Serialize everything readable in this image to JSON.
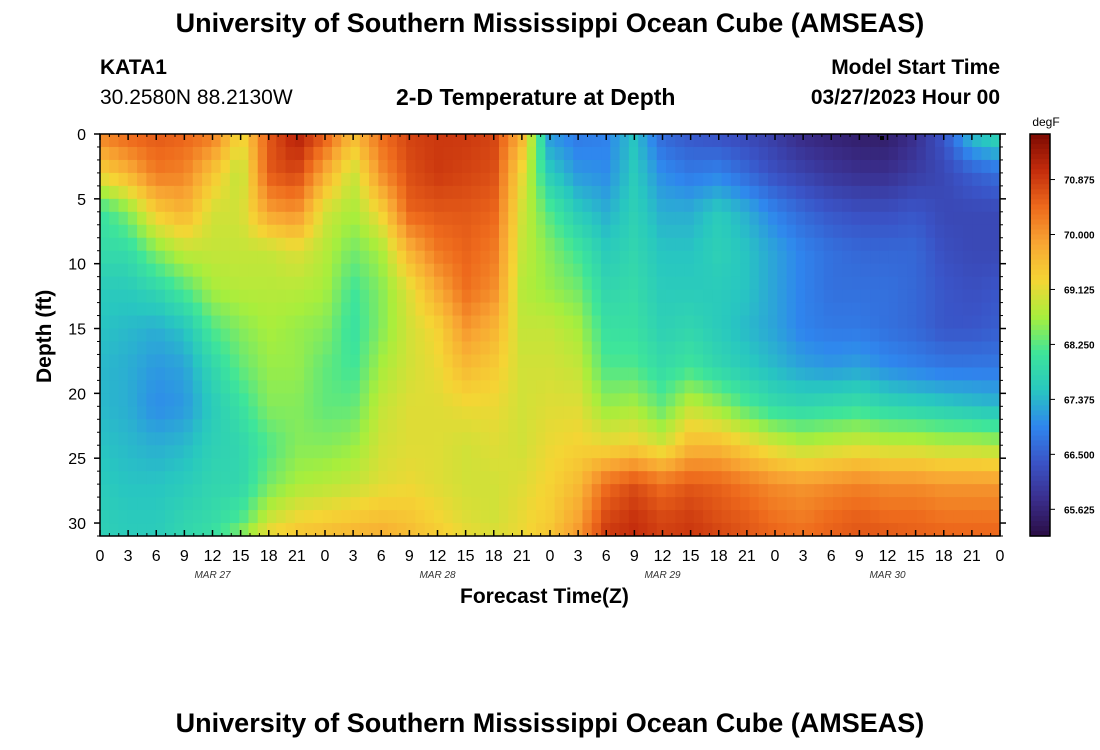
{
  "header": {
    "title": "University of Southern Mississippi Ocean Cube (AMSEAS)",
    "station": "KATA1",
    "coords": "30.2580N  88.2130W",
    "plot_title": "2-D Temperature at Depth",
    "model_label": "Model Start Time",
    "model_time": "03/27/2023 Hour 00"
  },
  "footer": {
    "title": "University of Southern Mississippi Ocean Cube (AMSEAS)"
  },
  "chart_data": {
    "type": "heatmap",
    "title": "2-D Temperature at Depth",
    "xlabel": "Forecast Time(Z)",
    "ylabel": "Depth (ft)",
    "x_range_hours": [
      0,
      96
    ],
    "y_range_ft": [
      0,
      31
    ],
    "x_tick_labels": [
      "0",
      "3",
      "6",
      "9",
      "12",
      "15",
      "18",
      "21",
      "0",
      "3",
      "6",
      "9",
      "12",
      "15",
      "18",
      "21",
      "0",
      "3",
      "6",
      "9",
      "12",
      "15",
      "18",
      "21",
      "0",
      "3",
      "6",
      "9",
      "12",
      "15",
      "18",
      "21",
      "0"
    ],
    "y_ticks": [
      0,
      5,
      10,
      15,
      20,
      25,
      30
    ],
    "day_labels": [
      {
        "label": "MAR 27",
        "hour": 12
      },
      {
        "label": "MAR 28",
        "hour": 36
      },
      {
        "label": "MAR 29",
        "hour": 60
      },
      {
        "label": "MAR 30",
        "hour": 84
      }
    ],
    "colorbar": {
      "unit": "degF",
      "range": [
        65.2,
        71.6
      ],
      "ticks": [
        "70.875",
        "70.000",
        "69.125",
        "68.250",
        "67.375",
        "66.500",
        "65.625"
      ],
      "colors": [
        "#2a0d44",
        "#3a2e8c",
        "#3a53c6",
        "#2f86ee",
        "#28c7c0",
        "#3ee59a",
        "#a8ee3c",
        "#f5d534",
        "#f8a633",
        "#ee6a1c",
        "#c32c0c",
        "#7d0a02"
      ]
    },
    "profile_depths_ft": [
      0,
      3,
      6,
      9,
      12,
      15,
      18,
      21,
      24,
      27,
      30,
      31
    ],
    "profiles": [
      {
        "hour": 0,
        "temps": [
          70.2,
          69.3,
          68.0,
          67.9,
          67.6,
          67.5,
          67.4,
          67.4,
          67.5,
          67.6,
          67.7,
          67.7
        ]
      },
      {
        "hour": 3,
        "temps": [
          70.5,
          69.7,
          68.5,
          67.9,
          67.6,
          67.4,
          67.3,
          67.3,
          67.4,
          67.5,
          67.6,
          67.6
        ]
      },
      {
        "hour": 6,
        "temps": [
          70.6,
          70.3,
          69.4,
          68.5,
          67.8,
          67.3,
          67.1,
          67.0,
          67.3,
          67.5,
          67.6,
          67.6
        ]
      },
      {
        "hour": 9,
        "temps": [
          70.5,
          70.2,
          69.7,
          68.9,
          68.2,
          67.5,
          67.2,
          67.1,
          67.4,
          67.6,
          67.8,
          67.8
        ]
      },
      {
        "hour": 12,
        "temps": [
          70.3,
          69.5,
          69.0,
          68.9,
          68.7,
          68.2,
          67.8,
          67.6,
          67.7,
          67.8,
          67.9,
          68.0
        ]
      },
      {
        "hour": 15,
        "temps": [
          69.2,
          68.8,
          69.0,
          68.9,
          68.8,
          68.5,
          68.3,
          68.0,
          67.8,
          67.8,
          68.2,
          68.6
        ]
      },
      {
        "hour": 18,
        "temps": [
          70.6,
          70.6,
          69.9,
          68.9,
          68.8,
          68.7,
          68.6,
          68.5,
          68.2,
          68.4,
          69.0,
          69.3
        ]
      },
      {
        "hour": 21,
        "temps": [
          71.2,
          70.8,
          70.1,
          69.1,
          68.8,
          68.6,
          68.6,
          68.5,
          68.5,
          68.7,
          69.3,
          69.5
        ]
      },
      {
        "hour": 24,
        "temps": [
          70.6,
          69.8,
          69.0,
          68.8,
          68.7,
          68.5,
          68.3,
          68.3,
          68.5,
          68.8,
          69.4,
          69.6
        ]
      },
      {
        "hour": 27,
        "temps": [
          69.6,
          68.9,
          68.7,
          68.4,
          68.1,
          68.0,
          68.1,
          68.3,
          68.6,
          68.9,
          69.5,
          69.7
        ]
      },
      {
        "hour": 30,
        "temps": [
          70.4,
          70.1,
          69.3,
          68.7,
          68.5,
          68.5,
          68.7,
          68.9,
          69.0,
          69.1,
          69.6,
          69.8
        ]
      },
      {
        "hour": 33,
        "temps": [
          70.8,
          70.7,
          70.5,
          69.7,
          69.1,
          69.0,
          69.0,
          69.1,
          69.1,
          69.2,
          69.5,
          69.6
        ]
      },
      {
        "hour": 36,
        "temps": [
          70.9,
          70.9,
          70.6,
          70.3,
          69.8,
          69.3,
          69.2,
          69.1,
          69.1,
          69.1,
          69.3,
          69.4
        ]
      },
      {
        "hour": 39,
        "temps": [
          70.9,
          70.8,
          70.6,
          70.5,
          70.4,
          70.0,
          69.6,
          69.2,
          69.0,
          69.0,
          69.1,
          69.2
        ]
      },
      {
        "hour": 42,
        "temps": [
          70.8,
          70.7,
          70.5,
          70.3,
          70.1,
          69.7,
          69.4,
          69.2,
          69.1,
          69.0,
          69.0,
          69.1
        ]
      },
      {
        "hour": 45,
        "temps": [
          69.7,
          69.2,
          69.0,
          68.9,
          68.8,
          68.9,
          69.0,
          69.0,
          69.0,
          69.1,
          69.2,
          69.2
        ]
      },
      {
        "hour": 48,
        "temps": [
          67.1,
          67.6,
          68.2,
          68.5,
          68.6,
          68.9,
          69.0,
          69.1,
          69.2,
          69.3,
          69.4,
          69.5
        ]
      },
      {
        "hour": 51,
        "temps": [
          66.8,
          67.1,
          67.6,
          68.1,
          68.4,
          68.7,
          68.9,
          69.1,
          69.3,
          69.6,
          69.9,
          70.0
        ]
      },
      {
        "hour": 54,
        "temps": [
          66.9,
          67.0,
          67.3,
          67.6,
          67.8,
          68.0,
          68.2,
          68.6,
          69.2,
          70.4,
          70.8,
          70.9
        ]
      },
      {
        "hour": 57,
        "temps": [
          67.5,
          67.6,
          67.7,
          67.8,
          67.9,
          68.0,
          68.2,
          68.7,
          69.3,
          70.7,
          71.0,
          71.0
        ]
      },
      {
        "hour": 60,
        "temps": [
          66.6,
          67.0,
          67.3,
          67.5,
          67.6,
          67.7,
          67.9,
          68.3,
          69.0,
          70.4,
          70.8,
          70.8
        ]
      },
      {
        "hour": 63,
        "temps": [
          66.4,
          66.8,
          67.3,
          67.5,
          67.6,
          67.8,
          68.1,
          68.9,
          69.6,
          70.6,
          70.9,
          70.9
        ]
      },
      {
        "hour": 66,
        "temps": [
          66.3,
          66.9,
          67.6,
          67.7,
          67.6,
          67.6,
          67.8,
          68.6,
          69.6,
          70.5,
          70.7,
          70.8
        ]
      },
      {
        "hour": 69,
        "temps": [
          66.2,
          66.6,
          67.3,
          67.5,
          67.5,
          67.4,
          67.6,
          68.2,
          69.3,
          70.3,
          70.6,
          70.6
        ]
      },
      {
        "hour": 72,
        "temps": [
          66.0,
          66.3,
          66.9,
          67.2,
          67.2,
          67.2,
          67.4,
          67.9,
          69.0,
          70.1,
          70.4,
          70.5
        ]
      },
      {
        "hour": 75,
        "temps": [
          65.7,
          66.1,
          66.6,
          66.9,
          66.9,
          66.9,
          67.2,
          67.8,
          68.8,
          70.0,
          70.3,
          70.4
        ]
      },
      {
        "hour": 78,
        "temps": [
          65.6,
          65.9,
          66.4,
          66.7,
          66.7,
          66.8,
          67.1,
          67.9,
          68.9,
          70.1,
          70.5,
          70.5
        ]
      },
      {
        "hour": 81,
        "temps": [
          65.5,
          65.8,
          66.3,
          66.6,
          66.7,
          66.8,
          67.2,
          68.0,
          69.0,
          70.2,
          70.6,
          70.6
        ]
      },
      {
        "hour": 84,
        "temps": [
          65.5,
          65.8,
          66.3,
          66.6,
          66.7,
          66.7,
          67.0,
          67.8,
          68.9,
          70.1,
          70.5,
          70.6
        ]
      },
      {
        "hour": 87,
        "temps": [
          65.8,
          66.0,
          66.4,
          66.6,
          66.6,
          66.6,
          66.9,
          67.7,
          68.9,
          70.1,
          70.5,
          70.5
        ]
      },
      {
        "hour": 90,
        "temps": [
          66.4,
          66.2,
          66.2,
          66.3,
          66.4,
          66.4,
          66.8,
          67.6,
          68.8,
          70.0,
          70.4,
          70.5
        ]
      },
      {
        "hour": 93,
        "temps": [
          67.5,
          66.5,
          66.2,
          66.2,
          66.3,
          66.4,
          66.8,
          67.5,
          68.8,
          70.0,
          70.4,
          70.5
        ]
      },
      {
        "hour": 96,
        "temps": [
          67.9,
          66.7,
          66.2,
          66.2,
          66.4,
          66.5,
          66.8,
          67.4,
          68.7,
          70.0,
          70.4,
          70.5
        ]
      }
    ]
  }
}
